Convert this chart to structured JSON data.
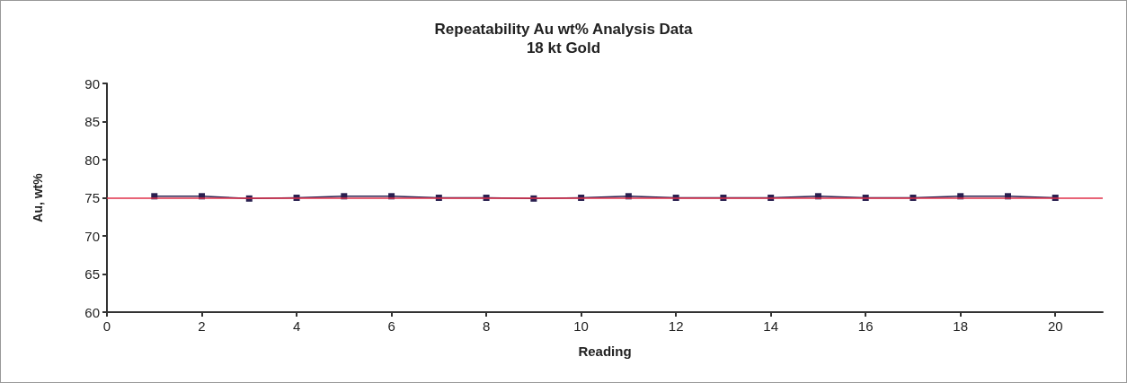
{
  "chart_data": {
    "type": "line",
    "title": "Repeatability Au wt% Analysis Data",
    "subtitle": "18 kt Gold",
    "xlabel": "Reading",
    "ylabel": "Au, wt%",
    "x": [
      1,
      2,
      3,
      4,
      5,
      6,
      7,
      8,
      9,
      10,
      11,
      12,
      13,
      14,
      15,
      16,
      17,
      18,
      19,
      20
    ],
    "series": [
      {
        "color": "#2a2050",
        "values": [
          75.2,
          75.2,
          74.9,
          75.0,
          75.2,
          75.2,
          75.0,
          75.0,
          74.9,
          75.0,
          75.2,
          75.0,
          75.0,
          75.0,
          75.2,
          75.0,
          75.0,
          75.2,
          75.2,
          75.0
        ]
      }
    ],
    "xlim": [
      0,
      21
    ],
    "xticks": [
      0,
      2,
      4,
      6,
      8,
      10,
      12,
      14,
      16,
      18,
      20
    ],
    "ylim": [
      60,
      90
    ],
    "yticks": [
      60,
      65,
      70,
      75,
      80,
      85,
      90
    ],
    "ref_lines": [
      {
        "axis": "y",
        "value": 75,
        "color": "#e0304a"
      }
    ],
    "grid": false,
    "marker": "square",
    "line_style": "solid"
  }
}
